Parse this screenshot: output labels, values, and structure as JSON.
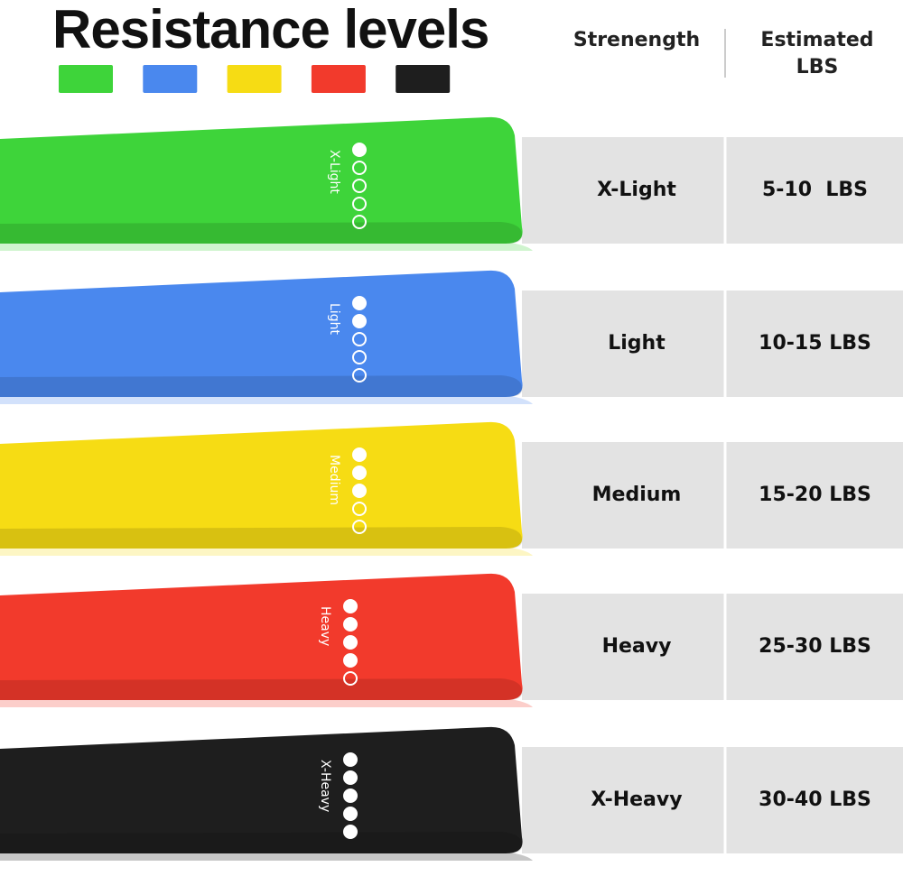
{
  "title": "Resistance levels",
  "header": {
    "strength": "Strenength",
    "estimated": "Estimated LBS"
  },
  "rows": [
    {
      "name": "X-Light",
      "lbs": "5-10  LBS",
      "color": "#3ed43a",
      "dots_filled": 1
    },
    {
      "name": "Light",
      "lbs": "10-15 LBS",
      "color": "#4a88ee",
      "dots_filled": 2
    },
    {
      "name": "Medium",
      "lbs": "15-20 LBS",
      "color": "#f6dc14",
      "dots_filled": 3
    },
    {
      "name": "Heavy",
      "lbs": "25-30 LBS",
      "color": "#f23a2c",
      "dots_filled": 4
    },
    {
      "name": "X-Heavy",
      "lbs": "30-40 LBS",
      "color": "#1e1e1e",
      "dots_filled": 5
    }
  ]
}
